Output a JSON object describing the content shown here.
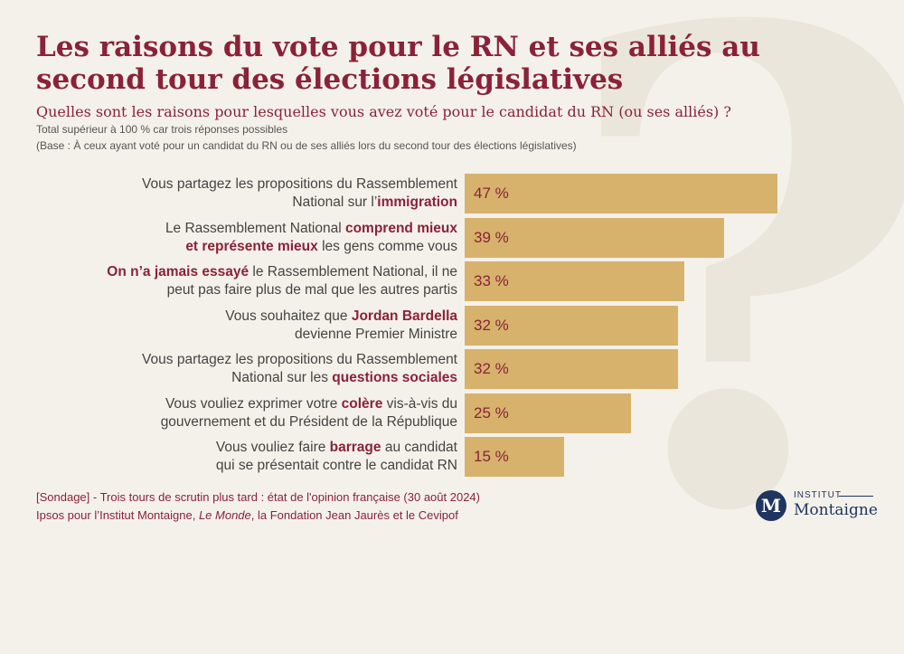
{
  "title": "Les raisons du vote pour le RN et ses alliés au second tour des élections législatives",
  "subtitle": "Quelles sont les raisons pour lesquelles vous avez voté pour le candidat du RN (ou ses alliés) ?",
  "note": "Total supérieur à 100 % car trois réponses possibles",
  "base": "(Base : À ceux ayant voté pour un candidat du RN ou de ses alliés lors du second tour des élections législatives)",
  "background_mark": "?",
  "colors": {
    "accent": "#8a2238",
    "bar": "#d6b26c",
    "background": "#f4f1ea",
    "logo": "#1f3560"
  },
  "chart_data": {
    "type": "bar",
    "orientation": "horizontal",
    "title": "Les raisons du vote pour le RN et ses alliés au second tour des élections législatives",
    "xlabel": "",
    "ylabel": "",
    "xlim": [
      0,
      70
    ],
    "unit": "%",
    "categories": [
      "Vous partagez les propositions du Rassemblement National sur l’immigration",
      "Le Rassemblement National comprend mieux et représente mieux les gens comme vous",
      "On n’a jamais essayé le Rassemblement National, il ne peut pas faire plus de mal que les autres partis",
      "Vous souhaitez que Jordan Bardella devienne Premier Ministre",
      "Vous partagez les propositions du Rassemblement National sur les questions sociales",
      "Vous vouliez exprimer votre colère vis-à-vis du gouvernement et du Président de la République",
      "Vous vouliez faire barrage au candidat qui se présentait contre le candidat RN"
    ],
    "values": [
      47,
      39,
      33,
      32,
      32,
      25,
      15
    ],
    "value_labels": [
      "47 %",
      "39 %",
      "33 %",
      "32 %",
      "32 %",
      "25 %",
      "15 %"
    ],
    "label_parts": [
      {
        "l1": [
          "Vous partagez les propositions du Rassemblement",
          "",
          ""
        ],
        "l2": [
          "National sur l’",
          "immigration",
          ""
        ]
      },
      {
        "l1": [
          "Le Rassemblement National ",
          "comprend mieux",
          ""
        ],
        "l2": [
          "",
          "et représente mieux",
          " les gens comme vous"
        ]
      },
      {
        "l1": [
          "",
          "On n’a jamais essayé",
          " le Rassemblement National, il ne"
        ],
        "l2": [
          "peut pas faire plus de mal que les autres partis",
          "",
          ""
        ]
      },
      {
        "l1": [
          "Vous souhaitez que ",
          "Jordan Bardella",
          ""
        ],
        "l2": [
          "devienne Premier Ministre",
          "",
          ""
        ]
      },
      {
        "l1": [
          "Vous partagez les propositions du Rassemblement",
          "",
          ""
        ],
        "l2": [
          "National sur les ",
          "questions sociales",
          ""
        ]
      },
      {
        "l1": [
          "Vous vouliez exprimer votre ",
          "colère",
          " vis-à-vis du"
        ],
        "l2": [
          "gouvernement et du Président de la République",
          "",
          ""
        ]
      },
      {
        "l1": [
          "Vous vouliez faire ",
          "barrage",
          " au candidat"
        ],
        "l2": [
          "qui se présentait contre le candidat RN",
          "",
          ""
        ]
      }
    ]
  },
  "footer": {
    "line1": "[Sondage] - Trois tours de scrutin plus tard : état de l'opinion française (30 août 2024)",
    "line2_prefix": "Ipsos pour l’Institut Montaigne, ",
    "line2_italic": "Le Monde",
    "line2_suffix": ", la Fondation Jean Jaurès et le Cevipof"
  },
  "logo": {
    "letter": "M",
    "top": "INSTITUT",
    "bottom": "Montaigne"
  }
}
